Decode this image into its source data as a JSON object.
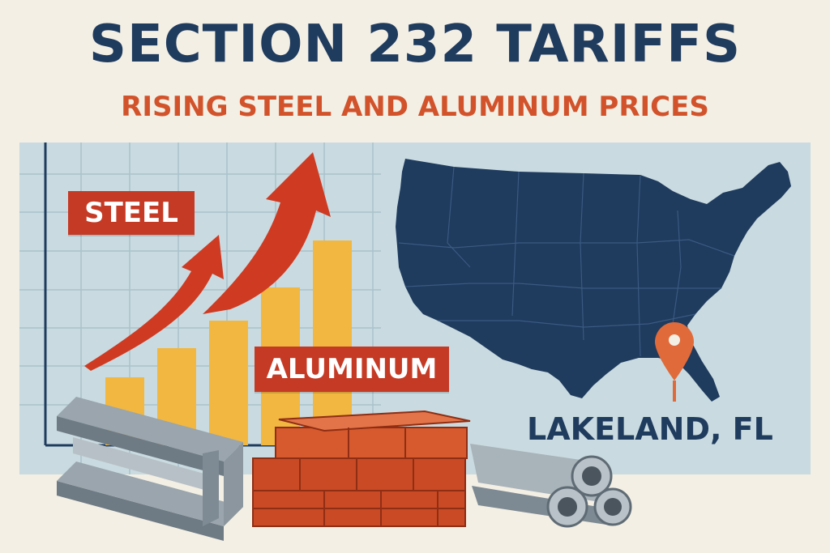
{
  "header": {
    "title": "SECTION 232 TARIFFS",
    "subtitle": "RISING STEEL AND ALUMINUM PRICES"
  },
  "chart": {
    "steel_label": "STEEL",
    "aluminum_label": "ALUMINUM"
  },
  "map": {
    "city_label": "LAKELAND, FL",
    "pin_icon": "location-pin-icon"
  },
  "colors": {
    "title": "#1f3b5e",
    "accent": "#d2532b",
    "label_bg": "#c53a25",
    "bars": "#f2b740",
    "map": "#1f3b5e",
    "panel": "#c9dbe0",
    "background": "#f3efe4"
  },
  "illustrations": [
    "steel-beams",
    "brick-stack",
    "metal-pipes",
    "rising-arrow",
    "us-map"
  ]
}
